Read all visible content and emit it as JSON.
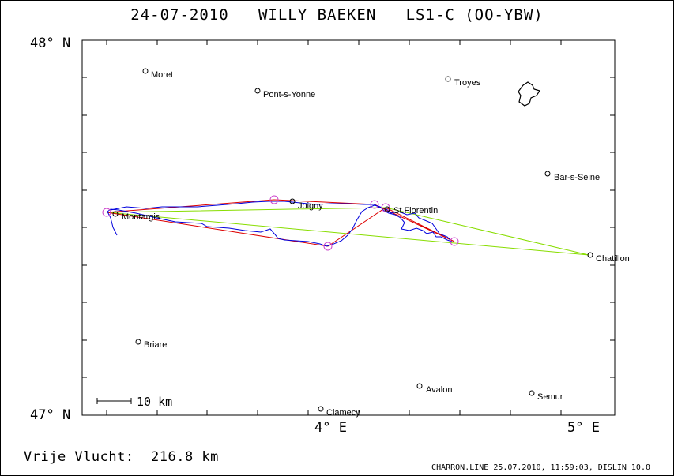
{
  "header": {
    "title": "24-07-2010   WILLY BAEKEN   LS1-C (OO-YBW)"
  },
  "map": {
    "axes": {
      "lat_top_label": "48° N",
      "lat_bottom_label": "47° N",
      "lon_labels": [
        "4° E",
        "5° E"
      ]
    },
    "scale_label": "10 km",
    "towns": [
      {
        "name": "Moret"
      },
      {
        "name": "Pont-s-Yonne"
      },
      {
        "name": "Troyes"
      },
      {
        "name": "Bar-s-Seine"
      },
      {
        "name": "Joigny"
      },
      {
        "name": "St.Florentin"
      },
      {
        "name": "Montargis"
      },
      {
        "name": "Chatillon"
      },
      {
        "name": "Briare"
      },
      {
        "name": "Avalon"
      },
      {
        "name": "Semur"
      },
      {
        "name": "Clamecy"
      }
    ],
    "colors": {
      "track": "#0000dd",
      "flown_task": "#dd0000",
      "declared_task": "#88dd00",
      "turnpoint": "#cc44cc"
    }
  },
  "footer": {
    "distance": "Vrije Vlucht:  216.8 km",
    "credit": "CHARRON.LINE 25.07.2010, 11:59:03, DISLIN 10.0"
  }
}
